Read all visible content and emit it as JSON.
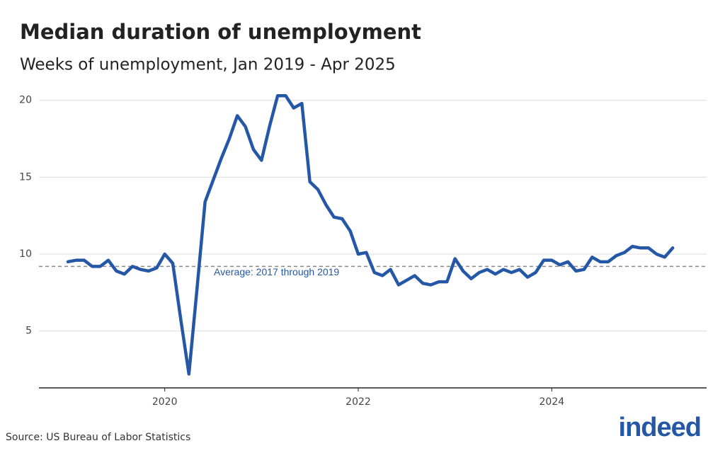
{
  "chart_data": {
    "type": "line",
    "title": "Median duration of unemployment",
    "subtitle": "Weeks of unemployment, Jan 2019 - Apr 2025",
    "source": "Source: US Bureau of Labor Statistics",
    "logo": "indeed",
    "x": [
      2019,
      2019.083,
      2019.167,
      2019.25,
      2019.333,
      2019.417,
      2019.5,
      2019.583,
      2019.667,
      2019.75,
      2019.833,
      2019.917,
      2020,
      2020.083,
      2020.167,
      2020.25,
      2020.333,
      2020.417,
      2020.5,
      2020.583,
      2020.667,
      2020.75,
      2020.833,
      2020.917,
      2021,
      2021.083,
      2021.167,
      2021.25,
      2021.333,
      2021.417,
      2021.5,
      2021.583,
      2021.667,
      2021.75,
      2021.833,
      2021.917,
      2022,
      2022.083,
      2022.167,
      2022.25,
      2022.333,
      2022.417,
      2022.5,
      2022.583,
      2022.667,
      2022.75,
      2022.833,
      2022.917,
      2023,
      2023.083,
      2023.167,
      2023.25,
      2023.333,
      2023.417,
      2023.5,
      2023.583,
      2023.667,
      2023.75,
      2023.833,
      2023.917,
      2024,
      2024.083,
      2024.167,
      2024.25,
      2024.333,
      2024.417,
      2024.5,
      2024.583,
      2024.667,
      2024.75,
      2024.833,
      2024.917,
      2025,
      2025.083,
      2025.167,
      2025.25
    ],
    "values": [
      9.5,
      9.6,
      9.6,
      9.2,
      9.2,
      9.6,
      8.9,
      8.7,
      9.2,
      9.0,
      8.9,
      9.1,
      10.0,
      9.4,
      5.7,
      2.2,
      7.7,
      13.4,
      14.8,
      16.2,
      17.5,
      19.0,
      18.3,
      16.8,
      16.1,
      18.3,
      20.3,
      20.3,
      19.5,
      19.8,
      14.7,
      14.2,
      13.2,
      12.4,
      12.3,
      11.5,
      10.0,
      10.1,
      8.8,
      8.6,
      9.0,
      8.0,
      8.3,
      8.6,
      8.1,
      8.0,
      8.2,
      8.2,
      9.7,
      8.9,
      8.4,
      8.8,
      9.0,
      8.7,
      9.0,
      8.8,
      9.0,
      8.5,
      8.8,
      9.6,
      9.6,
      9.3,
      9.5,
      8.9,
      9.0,
      9.8,
      9.5,
      9.5,
      9.9,
      10.1,
      10.5,
      10.4,
      10.4,
      10.0,
      9.8,
      10.4
    ],
    "color": "#2557a7",
    "reference_line": {
      "value": 9.2,
      "label": "Average: 2017 through 2019",
      "color": "#888888",
      "label_color": "#2557a7"
    },
    "xlim": [
      2018.7,
      2025.6
    ],
    "xticks": [
      2020,
      2022,
      2024
    ],
    "ylim": [
      1.3,
      21
    ],
    "yticks": [
      5,
      10,
      15,
      20
    ],
    "grid": true
  }
}
